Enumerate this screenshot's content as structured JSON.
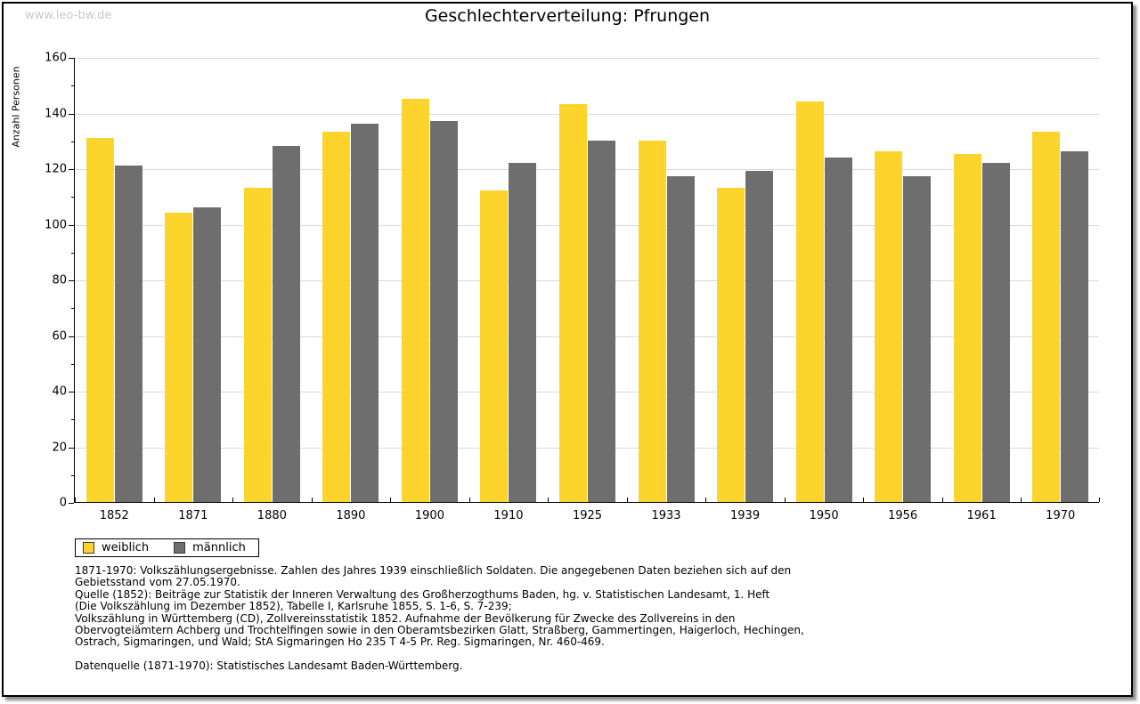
{
  "watermark": "www.leo-bw.de",
  "title": "Geschlechterverteilung: Pfrungen",
  "chart_data": {
    "type": "bar",
    "title": "Geschlechterverteilung: Pfrungen",
    "xlabel": "",
    "ylabel": "Anzahl Personen",
    "ylim": [
      0,
      160
    ],
    "ytick_step": 20,
    "yminor_step": 10,
    "grid": true,
    "legend_position": "bottom-left",
    "categories": [
      "1852",
      "1871",
      "1880",
      "1890",
      "1900",
      "1910",
      "1925",
      "1933",
      "1939",
      "1950",
      "1956",
      "1961",
      "1970"
    ],
    "series": [
      {
        "name": "weiblich",
        "color": "#fcd42c",
        "values": [
          131,
          104,
          113,
          133,
          145,
          112,
          143,
          130,
          113,
          144,
          126,
          125,
          133
        ]
      },
      {
        "name": "männlich",
        "color": "#6e6e6e",
        "values": [
          121,
          106,
          128,
          136,
          137,
          122,
          130,
          117,
          119,
          124,
          117,
          122,
          126
        ]
      }
    ]
  },
  "colors": {
    "grid": "#d9d9d9",
    "axis": "#000000",
    "watermark": "#c9c9c9",
    "weiblich": "#fcd42c",
    "maennlich": "#6e6e6e"
  },
  "footnote_lines": [
    "1871-1970: Volkszählungsergebnisse. Zahlen des Jahres 1939 einschließlich Soldaten. Die angegebenen Daten beziehen sich auf den",
    "Gebietsstand vom 27.05.1970.",
    "Quelle (1852): Beiträge zur Statistik der Inneren Verwaltung des Großherzogthums Baden, hg. v. Statistischen Landesamt, 1. Heft",
    "(Die Volkszählung im Dezember 1852), Tabelle I, Karlsruhe 1855, S. 1-6, S. 7-239;",
    "Volkszählung in Württemberg (CD), Zollvereinsstatistik 1852. Aufnahme der Bevölkerung für Zwecke des Zollvereins in den",
    "Obervogteiämtern Achberg und Trochtelfingen sowie in den Oberamtsbezirken Glatt, Straßberg, Gammertingen, Haigerloch, Hechingen,",
    "Ostrach, Sigmaringen, und Wald; StA Sigmaringen Ho 235 T 4-5 Pr. Reg. Sigmaringen, Nr. 460-469.",
    "",
    "Datenquelle (1871-1970): Statistisches Landesamt Baden-Württemberg."
  ]
}
